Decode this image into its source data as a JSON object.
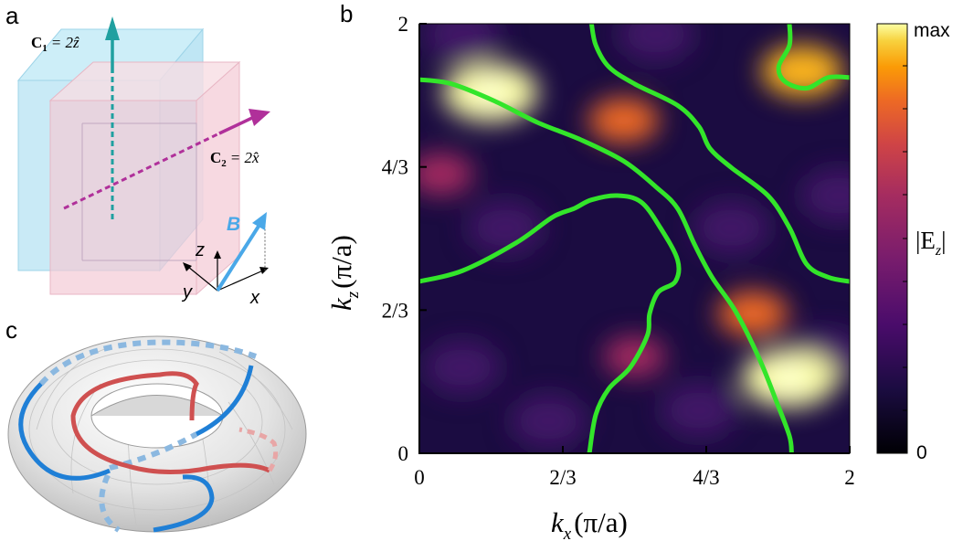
{
  "panels": {
    "a": "a",
    "b": "b",
    "c": "c"
  },
  "panel_a": {
    "c1_label": "C",
    "c1_sub": "1",
    "c1_eq": "= 2ẑ",
    "c2_label": "C",
    "c2_sub": "2",
    "c2_eq": "= 2x̂",
    "field_label": "B",
    "axis_z": "z",
    "axis_y": "y",
    "axis_x": "x",
    "colors": {
      "c1_arrow": "#1fa0a0",
      "c2_arrow": "#b0309a",
      "field_arrow": "#4aa8e8",
      "slab_blue": "#bfe6f4",
      "slab_pink": "#f6d2dc"
    }
  },
  "panel_c": {
    "colors": {
      "blue_curve": "#1f7fd6",
      "red_curve": "#cf5050",
      "torus": "#e6e6e6"
    }
  },
  "chart_data": {
    "type": "heatmap",
    "title": "",
    "xlabel": {
      "k": "k",
      "sub": "x",
      "unit": "(π/a)"
    },
    "ylabel": {
      "k": "k",
      "sub": "z",
      "unit": "(π/a)"
    },
    "xlim": [
      0,
      2
    ],
    "ylim": [
      0,
      2
    ],
    "x_ticks": [
      {
        "value": 0,
        "label": "0"
      },
      {
        "value": 0.6667,
        "label": "2/3"
      },
      {
        "value": 1.3333,
        "label": "4/3"
      },
      {
        "value": 2,
        "label": "2"
      }
    ],
    "y_ticks": [
      {
        "value": 0,
        "label": "0"
      },
      {
        "value": 0.6667,
        "label": "2/3"
      },
      {
        "value": 1.3333,
        "label": "4/3"
      },
      {
        "value": 2,
        "label": "2"
      }
    ],
    "colorbar": {
      "label": "|E",
      "label_sub": "z",
      "label_end": "|",
      "max_label": "max",
      "min_label": "0"
    },
    "hotspots": [
      {
        "x": 0.33,
        "y": 1.68,
        "intensity": 1.0
      },
      {
        "x": 1.72,
        "y": 0.35,
        "intensity": 1.0
      },
      {
        "x": 1.78,
        "y": 1.78,
        "intensity": 0.75
      },
      {
        "x": 0.95,
        "y": 1.55,
        "intensity": 0.55
      },
      {
        "x": 1.55,
        "y": 0.65,
        "intensity": 0.55
      },
      {
        "x": 1.0,
        "y": 0.45,
        "intensity": 0.4
      },
      {
        "x": 0.1,
        "y": 1.3,
        "intensity": 0.45
      }
    ],
    "contour_color": "#33e52a",
    "contours": [
      [
        [
          0,
          1.74
        ],
        [
          0.15,
          1.72
        ],
        [
          0.35,
          1.64
        ],
        [
          0.55,
          1.54
        ],
        [
          0.75,
          1.46
        ],
        [
          0.95,
          1.36
        ],
        [
          1.1,
          1.24
        ],
        [
          1.2,
          1.14
        ],
        [
          1.28,
          0.97
        ],
        [
          1.36,
          0.82
        ],
        [
          1.47,
          0.66
        ],
        [
          1.58,
          0.44
        ],
        [
          1.66,
          0.24
        ],
        [
          1.72,
          0.08
        ],
        [
          1.73,
          0
        ]
      ],
      [
        [
          0,
          0.8
        ],
        [
          0.2,
          0.85
        ],
        [
          0.45,
          0.98
        ],
        [
          0.62,
          1.1
        ],
        [
          0.72,
          1.14
        ],
        [
          0.8,
          1.18
        ],
        [
          0.92,
          1.2
        ],
        [
          1.03,
          1.17
        ],
        [
          1.12,
          1.05
        ],
        [
          1.2,
          0.9
        ],
        [
          1.19,
          0.8
        ],
        [
          1.11,
          0.75
        ],
        [
          1.07,
          0.65
        ],
        [
          1.06,
          0.55
        ],
        [
          0.98,
          0.4
        ],
        [
          0.88,
          0.3
        ],
        [
          0.82,
          0.18
        ],
        [
          0.79,
          0
        ],
        [
          0.79,
          0
        ]
      ],
      [
        [
          0.8,
          2
        ],
        [
          0.82,
          1.9
        ],
        [
          0.88,
          1.8
        ],
        [
          1.0,
          1.72
        ],
        [
          1.2,
          1.62
        ],
        [
          1.3,
          1.52
        ],
        [
          1.35,
          1.42
        ],
        [
          1.45,
          1.33
        ],
        [
          1.62,
          1.2
        ],
        [
          1.72,
          1.05
        ],
        [
          1.8,
          0.88
        ],
        [
          1.9,
          0.82
        ],
        [
          2,
          0.8
        ]
      ],
      [
        [
          1.72,
          2
        ],
        [
          1.72,
          1.9
        ],
        [
          1.67,
          1.8
        ],
        [
          1.7,
          1.73
        ],
        [
          1.8,
          1.7
        ],
        [
          1.9,
          1.75
        ],
        [
          2,
          1.75
        ]
      ]
    ]
  }
}
